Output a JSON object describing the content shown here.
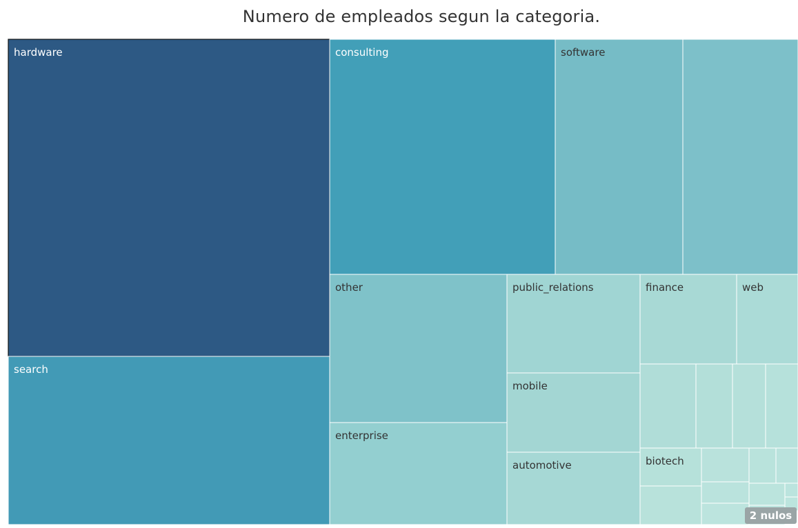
{
  "title": "Numero de empleados segun  la categoria.",
  "null_badge": "2 nulos",
  "chart_data": {
    "type": "treemap",
    "title": "Numero de empleados segun  la categoria.",
    "measure": "Numero de empleados",
    "categories": [
      {
        "name": "hardware",
        "label": "hardware",
        "value": 100,
        "color": "#2d5984",
        "selected": true
      },
      {
        "name": "search",
        "label": "search",
        "value": 52,
        "color": "#429ab6"
      },
      {
        "name": "consulting",
        "label": "consulting",
        "value": 35.6,
        "color": "#429fb8"
      },
      {
        "name": "software",
        "label": "software",
        "value": 20.2,
        "color": "#76bcc6"
      },
      {
        "name": "unlabeled-1",
        "label": "",
        "value": 18.4,
        "color": "#7dc0c9"
      },
      {
        "name": "other",
        "label": "other",
        "value": 17.8,
        "color": "#7fc2c9"
      },
      {
        "name": "enterprise",
        "label": "enterprise",
        "value": 12.3,
        "color": "#93cfd0"
      },
      {
        "name": "public_relations",
        "label": "public_relations",
        "value": 8.9,
        "color": "#a0d5d3"
      },
      {
        "name": "mobile",
        "label": "mobile",
        "value": 7.1,
        "color": "#a3d6d3"
      },
      {
        "name": "automotive",
        "label": "automotive",
        "value": 6.5,
        "color": "#a6d8d5"
      },
      {
        "name": "finance",
        "label": "finance",
        "value": 5.8,
        "color": "#a8d9d5"
      },
      {
        "name": "web",
        "label": "web",
        "value": 3.7,
        "color": "#abdbd7"
      },
      {
        "name": "unlabeled-2",
        "label": "",
        "value": 3.2,
        "color": "#b0ddd8"
      },
      {
        "name": "unlabeled-3",
        "label": "",
        "value": 2.1,
        "color": "#b3dfd9"
      },
      {
        "name": "unlabeled-4",
        "label": "",
        "value": 1.9,
        "color": "#b5e0da"
      },
      {
        "name": "unlabeled-5",
        "label": "",
        "value": 1.9,
        "color": "#b6e1db"
      },
      {
        "name": "biotech",
        "label": "biotech",
        "value": 1.8,
        "color": "#b6e1da"
      },
      {
        "name": "unlabeled-6",
        "label": "",
        "value": 1.1,
        "color": "#b8e2db"
      },
      {
        "name": "unlabeled-7",
        "label": "",
        "value": 1.0,
        "color": "#b9e2dc"
      },
      {
        "name": "unlabeled-8",
        "label": "",
        "value": 0.8,
        "color": "#b9e3dc"
      },
      {
        "name": "unlabeled-9",
        "label": "",
        "value": 0.6,
        "color": "#bae3dd"
      },
      {
        "name": "unlabeled-10",
        "label": "",
        "value": 0.5,
        "color": "#bae3dd"
      },
      {
        "name": "unlabeled-11",
        "label": "",
        "value": 0.4,
        "color": "#bbe4dd"
      },
      {
        "name": "unlabeled-12",
        "label": "",
        "value": 0.4,
        "color": "#bbe4de"
      },
      {
        "name": "unlabeled-13",
        "label": "",
        "value": 0.3,
        "color": "#bce4de"
      },
      {
        "name": "unlabeled-14",
        "label": "",
        "value": 0.25,
        "color": "#bce5de"
      },
      {
        "name": "unlabeled-15",
        "label": "",
        "value": 0.2,
        "color": "#bde5df"
      }
    ]
  }
}
